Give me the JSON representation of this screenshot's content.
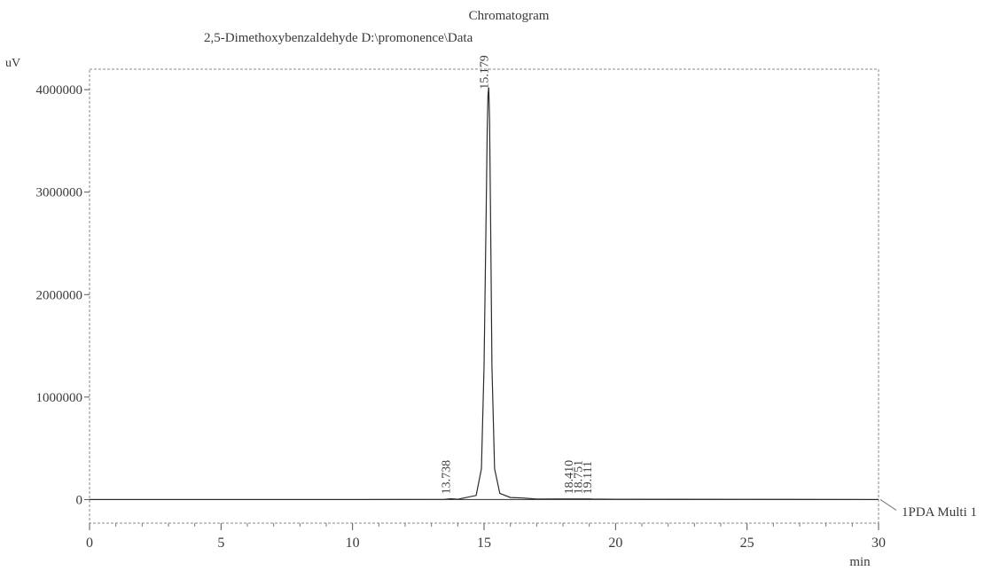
{
  "chart_data": {
    "type": "line",
    "title": "Chromatogram",
    "subtitle": "2,5-Dimethoxybenzaldehyde D:\\promonence\\Data",
    "ylabel": "uV",
    "xlabel": "min",
    "xlim": [
      0,
      30
    ],
    "ylim": [
      -230000,
      4200000
    ],
    "x_ticks": [
      0,
      5,
      10,
      15,
      20,
      25,
      30
    ],
    "y_ticks": [
      0,
      1000000,
      2000000,
      3000000,
      4000000
    ],
    "x_tick_labels": [
      "0",
      "5",
      "10",
      "15",
      "20",
      "25",
      "30"
    ],
    "y_tick_labels": [
      "0",
      "1000000",
      "2000000",
      "3000000",
      "4000000"
    ],
    "grid": false,
    "series": [
      {
        "name": "1PDA Multi 1",
        "x": [
          0,
          5,
          10,
          13.5,
          13.738,
          14.0,
          14.7,
          14.9,
          15.0,
          15.08,
          15.12,
          15.15,
          15.179,
          15.21,
          15.25,
          15.3,
          15.4,
          15.6,
          16.0,
          16.5,
          17.0,
          18.41,
          19.0,
          19.111,
          20.0,
          25.0,
          30.0
        ],
        "y": [
          0,
          0,
          0,
          2000,
          8000,
          3000,
          40000,
          300000,
          1300000,
          2800000,
          3600000,
          3950000,
          4020000,
          3700000,
          2700000,
          1300000,
          300000,
          60000,
          20000,
          15000,
          5000,
          6000,
          6000,
          5000,
          3000,
          2000,
          0
        ]
      }
    ],
    "peak_labels": [
      {
        "x": 13.738,
        "y": 8000,
        "label": "13.738"
      },
      {
        "x": 15.179,
        "y": 4020000,
        "label": "15.179"
      },
      {
        "x": 18.41,
        "y": 6000,
        "label": "18.410"
      },
      {
        "x": 18.751,
        "y": 6000,
        "label": "18.751"
      },
      {
        "x": 19.111,
        "y": 5000,
        "label": "19.111"
      }
    ],
    "trace_label": "1PDA Multi 1",
    "colors": {
      "trace": "#2b2b2b",
      "frame": "#7a7a7a",
      "text": "#3a3a3a"
    }
  }
}
